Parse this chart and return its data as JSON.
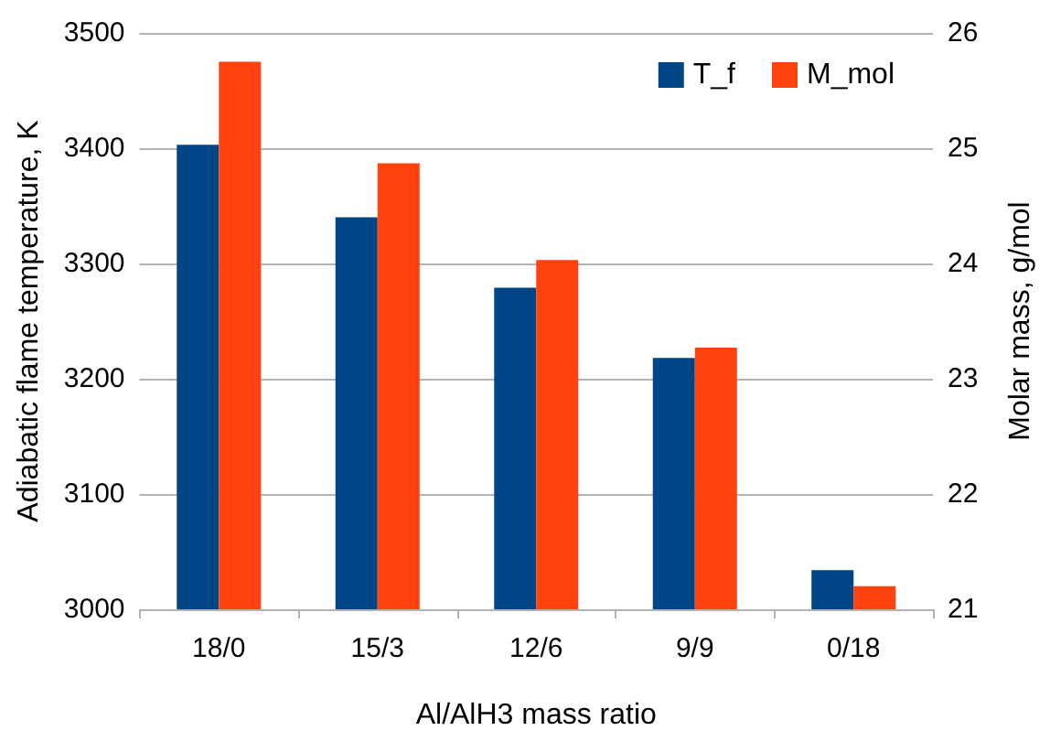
{
  "chart_data": {
    "type": "bar",
    "xlabel": "Al/AlH3 mass ratio",
    "ylabel": "Adiabatic flame temperature, K",
    "y2label": "Molar mass, g/mol",
    "categories": [
      "18/0",
      "15/3",
      "12/6",
      "9/9",
      "0/18"
    ],
    "series": [
      {
        "name": "T_f",
        "color": "#004586",
        "values": [
          3403,
          3340,
          3279,
          3218,
          3034
        ]
      },
      {
        "name": "M_mol",
        "color": "#ff420e",
        "values": [
          25.75,
          24.87,
          24.03,
          23.27,
          21.2
        ],
        "axis": "y2"
      }
    ],
    "ylim": [
      3000,
      3500
    ],
    "yticks": [
      3000,
      3100,
      3200,
      3300,
      3400,
      3500
    ],
    "y2lim": [
      21,
      26
    ],
    "y2ticks": [
      21,
      22,
      23,
      24,
      25,
      26
    ],
    "grid": "y",
    "legend": "top right"
  }
}
